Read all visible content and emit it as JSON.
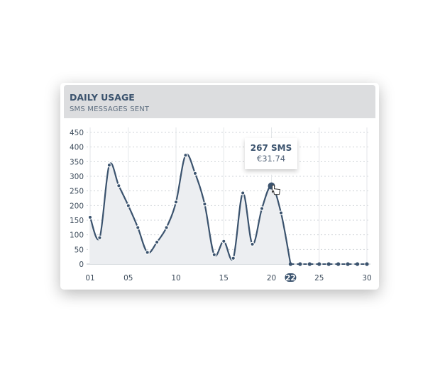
{
  "header": {
    "title": "DAILY USAGE",
    "subtitle": "SMS MESSAGES SENT"
  },
  "tooltip": {
    "value": "267 SMS",
    "cost": "€31.74"
  },
  "chart_data": {
    "type": "area",
    "title": "DAILY USAGE",
    "subtitle": "SMS MESSAGES SENT",
    "x": [
      1,
      2,
      3,
      4,
      5,
      6,
      7,
      8,
      9,
      10,
      11,
      12,
      13,
      14,
      15,
      16,
      17,
      18,
      19,
      20,
      21,
      22,
      23,
      24,
      25,
      26,
      27,
      28,
      29,
      30
    ],
    "values": [
      160,
      90,
      338,
      268,
      200,
      125,
      40,
      75,
      125,
      212,
      372,
      310,
      205,
      32,
      78,
      20,
      243,
      68,
      190,
      267,
      175,
      0,
      0,
      0,
      0,
      0,
      0,
      0,
      0,
      0
    ],
    "ylim": [
      0,
      450
    ],
    "yticks": [
      0,
      50,
      100,
      150,
      200,
      250,
      300,
      350,
      400,
      450
    ],
    "xtick_labels": [
      "01",
      "05",
      "10",
      "15",
      "20",
      "22",
      "25",
      "30"
    ],
    "xtick_values": [
      1,
      5,
      10,
      15,
      20,
      22,
      25,
      30
    ],
    "highlight_x": 22,
    "tooltip_x": 20,
    "grid": true,
    "color": "#3b536e",
    "fill": "#eceef1"
  }
}
